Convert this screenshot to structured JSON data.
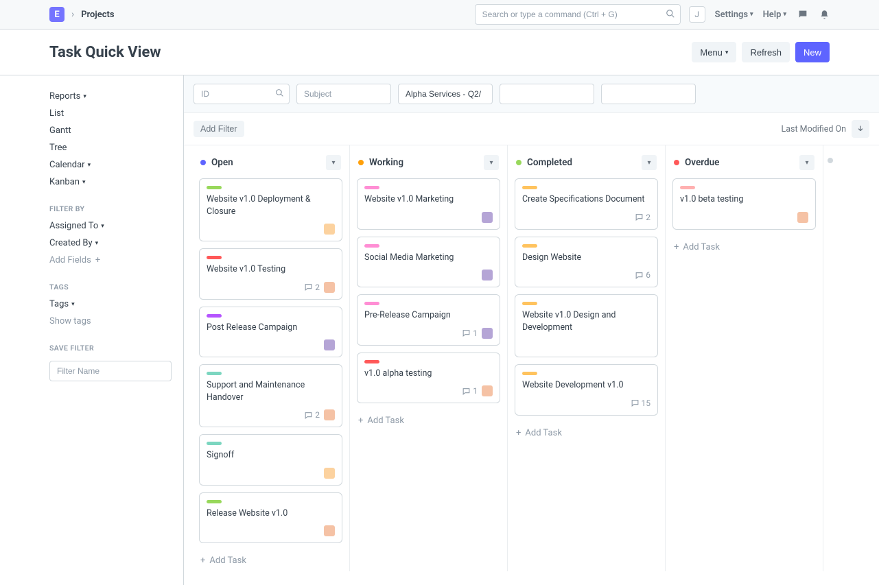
{
  "topbar": {
    "logo_letter": "E",
    "breadcrumb": "Projects",
    "search_placeholder": "Search or type a command (Ctrl + G)",
    "user_initial": "J",
    "settings_label": "Settings",
    "help_label": "Help"
  },
  "header": {
    "title": "Task Quick View",
    "menu_label": "Menu",
    "refresh_label": "Refresh",
    "new_label": "New"
  },
  "sidebar": {
    "views": [
      {
        "label": "Reports",
        "caret": true
      },
      {
        "label": "List",
        "caret": false
      },
      {
        "label": "Gantt",
        "caret": false
      },
      {
        "label": "Tree",
        "caret": false
      },
      {
        "label": "Calendar",
        "caret": true
      },
      {
        "label": "Kanban",
        "caret": true
      }
    ],
    "filter_by_heading": "FILTER BY",
    "filter_items": [
      {
        "label": "Assigned To",
        "caret": true
      },
      {
        "label": "Created By",
        "caret": true
      }
    ],
    "add_fields_label": "Add Fields",
    "tags_heading": "TAGS",
    "tags_label": "Tags",
    "show_tags_label": "Show tags",
    "save_filter_heading": "SAVE FILTER",
    "filter_name_placeholder": "Filter Name"
  },
  "filters": {
    "id_placeholder": "ID",
    "subject_placeholder": "Subject",
    "project_value": "Alpha Services - Q2/"
  },
  "toolbar": {
    "add_filter_label": "Add Filter",
    "sort_label": "Last Modified On"
  },
  "columns": [
    {
      "title": "Open",
      "dot_color": "#5e64ff",
      "cards": [
        {
          "pill": "#98d85b",
          "title": "Website v1.0 Deployment & Closure",
          "avatar": "av1"
        },
        {
          "pill": "#ff5858",
          "title": "Website v1.0 Testing",
          "comments": 2,
          "avatar": "av3"
        },
        {
          "pill": "#b554ff",
          "title": "Post Release Campaign",
          "avatar": "av2"
        },
        {
          "pill": "#7cd6c0",
          "title": "Support and Maintenance Handover",
          "comments": 2,
          "avatar": "av3"
        },
        {
          "pill": "#7cd6c0",
          "title": "Signoff",
          "avatar": "av1"
        },
        {
          "pill": "#98d85b",
          "title": "Release Website v1.0",
          "avatar": "av3"
        }
      ],
      "add_task_label": "Add Task"
    },
    {
      "title": "Working",
      "dot_color": "#ffa00a",
      "cards": [
        {
          "pill": "#ff8ed4",
          "title": "Website v1.0 Marketing",
          "avatar": "av2"
        },
        {
          "pill": "#ff8ed4",
          "title": "Social Media Marketing",
          "avatar": "av2"
        },
        {
          "pill": "#ff8ed4",
          "title": "Pre-Release Campaign",
          "comments": 1,
          "avatar": "av2"
        },
        {
          "pill": "#ff5858",
          "title": "v1.0 alpha testing",
          "comments": 1,
          "avatar": "av3"
        }
      ],
      "add_task_label": "Add Task"
    },
    {
      "title": "Completed",
      "dot_color": "#98d85b",
      "cards": [
        {
          "pill": "#ffc35e",
          "title": "Create Specifications Document",
          "comments": 2
        },
        {
          "pill": "#ffc35e",
          "title": "Design Website",
          "comments": 6
        },
        {
          "pill": "#ffc35e",
          "title": "Website v1.0 Design and Development"
        },
        {
          "pill": "#ffc35e",
          "title": "Website Development v1.0",
          "comments": 15
        }
      ],
      "add_task_label": "Add Task"
    },
    {
      "title": "Overdue",
      "dot_color": "#ff5858",
      "cards": [
        {
          "pill": "#ffb0b0",
          "title": "v1.0 beta testing",
          "avatar": "av3"
        }
      ],
      "add_task_label": "Add Task"
    }
  ],
  "colors": {
    "primary": "#5e64ff",
    "border": "#d1d8dd",
    "muted": "#8d99a6",
    "bg_subtle": "#f7fafc",
    "btn_bg": "#f0f4f7"
  }
}
